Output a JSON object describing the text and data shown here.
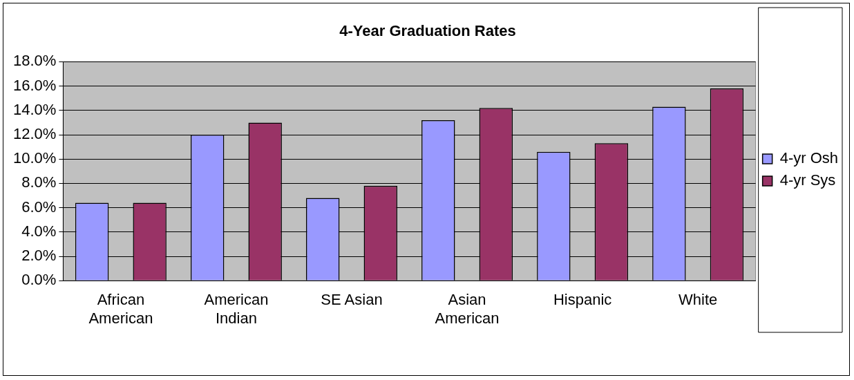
{
  "chart_data": {
    "type": "bar",
    "title": "4-Year Graduation Rates",
    "categories": [
      "African American",
      "American Indian",
      "SE Asian",
      "Asian American",
      "Hispanic",
      "White"
    ],
    "series": [
      {
        "name": "4-yr Osh",
        "color": "#9999ff",
        "values": [
          6.4,
          12.0,
          6.8,
          13.2,
          10.6,
          14.3
        ]
      },
      {
        "name": "4-yr Sys",
        "color": "#993366",
        "values": [
          6.4,
          13.0,
          7.8,
          14.2,
          11.3,
          15.8
        ]
      }
    ],
    "ylim": [
      0,
      18
    ],
    "yticks": [
      {
        "value": 0,
        "label": "0.0%"
      },
      {
        "value": 2,
        "label": "2.0%"
      },
      {
        "value": 4,
        "label": "4.0%"
      },
      {
        "value": 6,
        "label": "6.0%"
      },
      {
        "value": 8,
        "label": "8.0%"
      },
      {
        "value": 10,
        "label": "10.0%"
      },
      {
        "value": 12,
        "label": "12.0%"
      },
      {
        "value": 14,
        "label": "14.0%"
      },
      {
        "value": 16,
        "label": "16.0%"
      },
      {
        "value": 18,
        "label": "18.0%"
      }
    ],
    "grid": "y",
    "legend": "right"
  }
}
